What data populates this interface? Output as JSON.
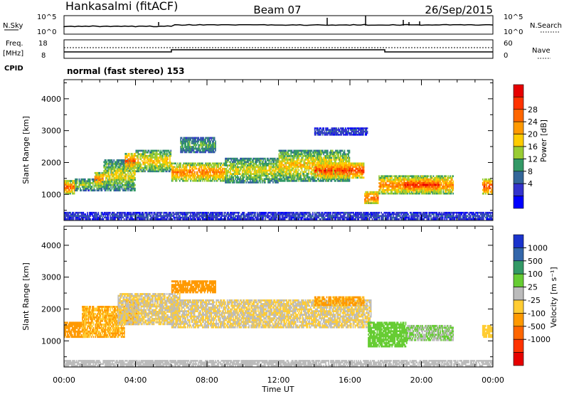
{
  "header": {
    "station": "Hankasalmi (fitACF)",
    "beam": "Beam 07",
    "date": "26/Sep/2015"
  },
  "params": {
    "nsky_label": "N.Sky",
    "nsearch_label": "N.Search",
    "freq_label": "Freq.",
    "freq_unit": "[MHz]",
    "nave_label": "Nave",
    "cpid_label": "CPID",
    "cpid_text": "normal (fast stereo) 153",
    "noise_ticks": [
      "10^5",
      "10^0"
    ],
    "freq_ticks": [
      "18",
      "8"
    ],
    "nave_ticks": [
      "60",
      "0"
    ]
  },
  "axes": {
    "ylabel": "Slant Range [km]",
    "xlabel": "Time UT",
    "yticks": [
      "4000",
      "3000",
      "2000",
      "1000"
    ],
    "xticks": [
      "00:00",
      "04:00",
      "08:00",
      "12:00",
      "16:00",
      "20:00",
      "00:00"
    ]
  },
  "power_scale": {
    "label": "Power [dB]",
    "ticks": [
      "28",
      "24",
      "20",
      "16",
      "12",
      "8",
      "4"
    ],
    "colors": [
      "#e60000",
      "#ff3300",
      "#ff6600",
      "#ff9900",
      "#ffcc00",
      "#99cc33",
      "#339966",
      "#336699",
      "#3333cc",
      "#0000ff"
    ]
  },
  "velocity_scale": {
    "label": "Velocity [m s⁻¹]",
    "ticks": [
      "1000",
      "500",
      "100",
      "25",
      "-25",
      "-100",
      "-500",
      "-1000"
    ],
    "colors": [
      "#1a33cc",
      "#3366aa",
      "#339966",
      "#66cc33",
      "#bbbbbb",
      "#ffcc33",
      "#ff9900",
      "#ff6600",
      "#ff3300",
      "#e60000"
    ]
  },
  "chart_data": [
    {
      "type": "heatmap",
      "title": "Power",
      "xlabel": "Time UT",
      "ylabel": "Slant Range [km]",
      "xlim": [
        "00:00",
        "24:00"
      ],
      "ylim": [
        180,
        4600
      ],
      "color_label": "Power [dB]",
      "color_range": [
        0,
        32
      ],
      "regions": [
        {
          "t": [
            0.0,
            0.6
          ],
          "r": [
            1000,
            1450
          ],
          "value": 24
        },
        {
          "t": [
            0.6,
            2.2
          ],
          "r": [
            1100,
            1500
          ],
          "value": 14
        },
        {
          "t": [
            1.7,
            2.2
          ],
          "r": [
            1250,
            1700
          ],
          "value": 22
        },
        {
          "t": [
            2.2,
            4.0
          ],
          "r": [
            1100,
            2100
          ],
          "value": 16
        },
        {
          "t": [
            3.4,
            4.0
          ],
          "r": [
            1800,
            2300
          ],
          "value": 24
        },
        {
          "t": [
            4.0,
            6.0
          ],
          "r": [
            1700,
            2400
          ],
          "value": 18
        },
        {
          "t": [
            6.0,
            9.0
          ],
          "r": [
            1400,
            2000
          ],
          "value": 22
        },
        {
          "t": [
            6.5,
            8.5
          ],
          "r": [
            2300,
            2800
          ],
          "value": 12
        },
        {
          "t": [
            9.0,
            12.0
          ],
          "r": [
            1350,
            2150
          ],
          "value": 16
        },
        {
          "t": [
            12.0,
            16.0
          ],
          "r": [
            1400,
            2400
          ],
          "value": 18
        },
        {
          "t": [
            14.0,
            16.8
          ],
          "r": [
            1500,
            2000
          ],
          "value": 26
        },
        {
          "t": [
            16.8,
            17.6
          ],
          "r": [
            700,
            1100
          ],
          "value": 24
        },
        {
          "t": [
            17.6,
            21.8
          ],
          "r": [
            1000,
            1600
          ],
          "value": 22
        },
        {
          "t": [
            19.0,
            21.0
          ],
          "r": [
            1100,
            1500
          ],
          "value": 28
        },
        {
          "t": [
            23.4,
            24.0
          ],
          "r": [
            1000,
            1500
          ],
          "value": 26
        },
        {
          "t": [
            14.0,
            17.0
          ],
          "r": [
            2850,
            3100
          ],
          "value": 6
        },
        {
          "t": [
            0.0,
            24.0
          ],
          "r": [
            200,
            450
          ],
          "value": 6
        }
      ]
    },
    {
      "type": "heatmap",
      "title": "Velocity",
      "xlabel": "Time UT",
      "ylabel": "Slant Range [km]",
      "xlim": [
        "00:00",
        "24:00"
      ],
      "ylim": [
        180,
        4600
      ],
      "color_label": "Velocity [m s⁻¹]",
      "color_range": [
        -1000,
        1000
      ],
      "regions": [
        {
          "t": [
            0.0,
            1.2
          ],
          "r": [
            1100,
            1600
          ],
          "value": -300
        },
        {
          "t": [
            1.0,
            3.4
          ],
          "r": [
            1100,
            2100
          ],
          "value": -200
        },
        {
          "t": [
            3.4,
            4.2
          ],
          "r": [
            1500,
            2300
          ],
          "value": -300
        },
        {
          "t": [
            3.0,
            6.5
          ],
          "r": [
            1500,
            2500
          ],
          "value": 0
        },
        {
          "t": [
            6.0,
            17.2
          ],
          "r": [
            1400,
            2300
          ],
          "value": 0
        },
        {
          "t": [
            6.0,
            8.5
          ],
          "r": [
            2500,
            2900
          ],
          "value": -300
        },
        {
          "t": [
            14.0,
            16.8
          ],
          "r": [
            2100,
            2400
          ],
          "value": -250
        },
        {
          "t": [
            17.0,
            19.2
          ],
          "r": [
            800,
            1600
          ],
          "value": 300
        },
        {
          "t": [
            19.2,
            21.8
          ],
          "r": [
            1000,
            1500
          ],
          "value": 200
        },
        {
          "t": [
            23.4,
            24.0
          ],
          "r": [
            1100,
            1500
          ],
          "value": -150
        },
        {
          "t": [
            0.0,
            24.0
          ],
          "r": [
            200,
            400
          ],
          "value": 60
        }
      ]
    }
  ]
}
